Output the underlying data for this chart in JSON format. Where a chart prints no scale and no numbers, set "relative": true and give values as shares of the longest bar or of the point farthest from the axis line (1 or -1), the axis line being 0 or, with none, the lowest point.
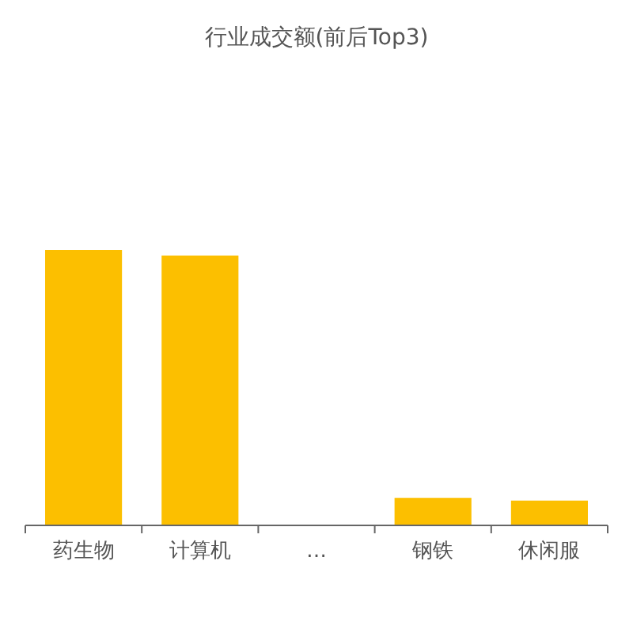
{
  "chart_data": {
    "type": "bar",
    "title": "行业成交额(前后Top3)",
    "relative": true,
    "categories": [
      "药生物",
      "计算机",
      "…",
      "钢铁",
      "休闲服"
    ],
    "values": [
      1,
      0.98,
      null,
      0.1,
      0.09
    ],
    "color": "#fcbf00"
  }
}
